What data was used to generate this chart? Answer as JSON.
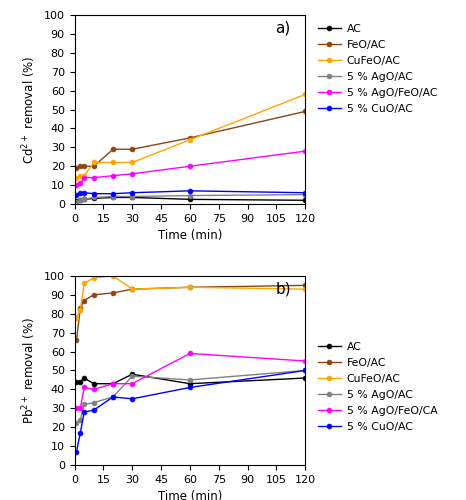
{
  "time_a": [
    1,
    3,
    5,
    10,
    20,
    30,
    60,
    120
  ],
  "panel_a": {
    "AC": [
      1.5,
      2.0,
      2.5,
      3.0,
      3.5,
      3.5,
      2.5,
      2.0
    ],
    "FeO/AC": [
      19.0,
      20.0,
      20.0,
      20.0,
      29.0,
      29.0,
      35.0,
      49.0
    ],
    "CuFeO/AC": [
      14.0,
      15.0,
      15.0,
      22.0,
      22.0,
      22.0,
      34.0,
      58.0
    ],
    "5 % AgO/AC": [
      1.0,
      2.0,
      2.5,
      3.5,
      4.0,
      4.0,
      4.5,
      5.0
    ],
    "5 % AgO/FeO/AC": [
      10.0,
      11.0,
      14.0,
      14.0,
      15.0,
      16.0,
      20.0,
      28.0
    ],
    "5 % CuO/AC": [
      5.0,
      6.0,
      6.0,
      5.5,
      5.5,
      6.0,
      7.0,
      6.0
    ]
  },
  "colors_a": {
    "AC": "#000000",
    "FeO/AC": "#8B4513",
    "CuFeO/AC": "#FFA500",
    "5 % AgO/AC": "#808080",
    "5 % AgO/FeO/AC": "#FF00FF",
    "5 % CuO/AC": "#0000FF"
  },
  "time_b": [
    1,
    3,
    5,
    10,
    20,
    30,
    60,
    120
  ],
  "panel_b": {
    "AC": [
      44.0,
      44.0,
      46.0,
      43.0,
      43.0,
      48.0,
      43.0,
      46.0
    ],
    "FeO/AC": [
      66.0,
      83.0,
      87.0,
      90.0,
      91.0,
      93.0,
      94.0,
      95.0
    ],
    "CuFeO/AC": [
      78.0,
      82.0,
      96.0,
      99.0,
      100.0,
      93.0,
      94.0,
      93.0
    ],
    "5 % AgO/AC": [
      22.0,
      24.0,
      32.0,
      33.0,
      36.0,
      47.0,
      45.0,
      50.0
    ],
    "5 % AgO/FeO/CA": [
      30.0,
      30.0,
      41.0,
      40.0,
      43.0,
      43.0,
      59.0,
      55.0
    ],
    "5 % CuO/AC": [
      7.0,
      17.0,
      28.0,
      29.0,
      36.0,
      35.0,
      41.0,
      50.0
    ]
  },
  "colors_b": {
    "AC": "#000000",
    "FeO/AC": "#8B4513",
    "CuFeO/AC": "#FFA500",
    "5 % AgO/AC": "#808080",
    "5 % AgO/FeO/CA": "#FF00FF",
    "5 % CuO/AC": "#0000FF"
  },
  "ylabel_a": "Cd$^{2+}$ removal (%)",
  "ylabel_b": "Pb$^{2+}$ removal (%)",
  "xlabel": "Time (min)",
  "ylim": [
    0,
    100
  ],
  "yticks": [
    0,
    10,
    20,
    30,
    40,
    50,
    60,
    70,
    80,
    90,
    100
  ],
  "xticks": [
    0,
    15,
    30,
    45,
    60,
    75,
    90,
    105,
    120
  ],
  "label_a": "a)",
  "label_b": "b)"
}
